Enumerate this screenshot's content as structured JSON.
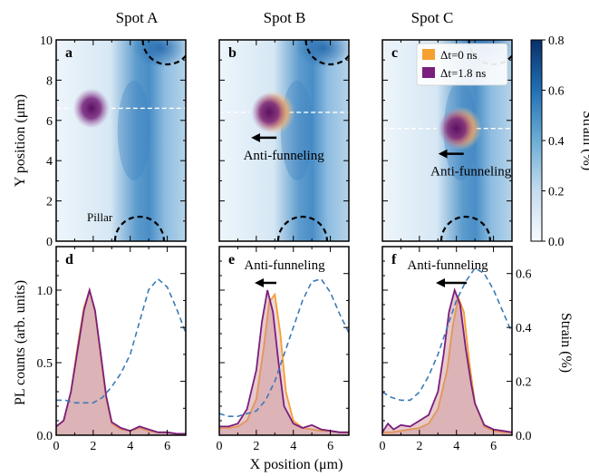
{
  "figure": {
    "column_titles": [
      "Spot A",
      "Spot B",
      "Spot C"
    ],
    "panel_letters": [
      "a",
      "b",
      "c",
      "d",
      "e",
      "f"
    ],
    "top_ylabel": "Y position (μm)",
    "bottom_ylabel": "PL counts (arb. units)",
    "xlabel": "X position (μm)",
    "colorbar_label": "Strain (%)",
    "right_ylabel": "Strain (%)",
    "pillar_label": "Pillar",
    "anti_funneling_label": "Anti-funneling",
    "legend": [
      {
        "label": "Δt=0 ns",
        "color": "#f5a030"
      },
      {
        "label": "Δt=1.8 ns",
        "color": "#7a1e7e"
      }
    ],
    "colormap": "Blues"
  },
  "chart_data": [
    {
      "type": "heatmap",
      "panel": "a",
      "title": "Spot A",
      "xlim": [
        0,
        7
      ],
      "ylim": [
        0,
        10
      ],
      "xticks": [
        0,
        2,
        4,
        6
      ],
      "yticks": [
        0,
        2,
        4,
        6,
        8,
        10
      ],
      "ylabel": "Y position (μm)",
      "colorbar_range": [
        0,
        0.8
      ],
      "exciton_spot": {
        "x": 1.9,
        "y": 6.6
      },
      "cut_line_y": 6.6,
      "pillars": [
        {
          "x": 4.5,
          "y": 0
        },
        {
          "x": 6.0,
          "y": 10
        }
      ]
    },
    {
      "type": "heatmap",
      "panel": "b",
      "title": "Spot B",
      "xlim": [
        0,
        7
      ],
      "ylim": [
        0,
        10
      ],
      "xticks": [
        0,
        2,
        4,
        6
      ],
      "yticks": [
        0,
        2,
        4,
        6,
        8,
        10
      ],
      "exciton_spot": {
        "x": 2.7,
        "y": 6.4
      },
      "cut_line_y": 6.4,
      "annotation": "Anti-funneling",
      "pillars": [
        {
          "x": 4.5,
          "y": 0
        },
        {
          "x": 6.0,
          "y": 10
        }
      ]
    },
    {
      "type": "heatmap",
      "panel": "c",
      "title": "Spot C",
      "xlim": [
        0,
        7
      ],
      "ylim": [
        0,
        10
      ],
      "xticks": [
        0,
        2,
        4,
        6
      ],
      "yticks": [
        0,
        2,
        4,
        6,
        8,
        10
      ],
      "colorbar_range": [
        0,
        0.8
      ],
      "colorbar_ticks": [
        0.0,
        0.2,
        0.4,
        0.6,
        0.8
      ],
      "exciton_spot": {
        "x": 4.0,
        "y": 5.6
      },
      "cut_line_y": 5.6,
      "annotation": "Anti-funneling",
      "pillars": [
        {
          "x": 4.5,
          "y": 0
        },
        {
          "x": 6.0,
          "y": 10
        }
      ]
    },
    {
      "type": "line",
      "panel": "d",
      "xlim": [
        0,
        7
      ],
      "ylim": [
        0,
        1.3
      ],
      "xticks": [
        0,
        2,
        4,
        6
      ],
      "yticks": [
        0.0,
        0.5,
        1.0
      ],
      "ylabel": "PL counts (arb. units)",
      "right_ylim": [
        0,
        0.7
      ],
      "series": [
        {
          "name": "Δt=0 ns",
          "x": [
            0,
            0.4,
            0.8,
            1.2,
            1.5,
            1.8,
            2.1,
            2.4,
            2.7,
            3.0,
            3.5,
            4.0,
            4.5,
            5.0,
            5.5,
            6.0,
            6.5,
            7.0
          ],
          "values": [
            0.06,
            0.1,
            0.3,
            0.65,
            0.88,
            1.0,
            0.85,
            0.55,
            0.25,
            0.08,
            0.04,
            0.03,
            0.05,
            0.03,
            0.02,
            0.02,
            0.01,
            0.01
          ]
        },
        {
          "name": "Δt=1.8 ns",
          "x": [
            0,
            0.4,
            0.8,
            1.2,
            1.5,
            1.8,
            2.1,
            2.4,
            2.7,
            3.0,
            3.5,
            4.0,
            4.5,
            5.0,
            5.5,
            6.0,
            6.5,
            7.0
          ],
          "values": [
            0.06,
            0.1,
            0.3,
            0.62,
            0.86,
            1.0,
            0.86,
            0.57,
            0.27,
            0.09,
            0.05,
            0.03,
            0.06,
            0.04,
            0.02,
            0.02,
            0.01,
            0.01
          ]
        },
        {
          "name": "Strain",
          "axis": "right",
          "x": [
            0,
            0.5,
            1.0,
            1.5,
            2.0,
            2.5,
            3.0,
            3.5,
            4.0,
            4.5,
            5.0,
            5.5,
            6.0,
            6.5,
            7.0
          ],
          "values": [
            0.13,
            0.13,
            0.12,
            0.12,
            0.12,
            0.14,
            0.18,
            0.23,
            0.3,
            0.42,
            0.54,
            0.58,
            0.55,
            0.47,
            0.38
          ]
        }
      ]
    },
    {
      "type": "line",
      "panel": "e",
      "xlim": [
        0,
        7
      ],
      "ylim": [
        0,
        1.3
      ],
      "xticks": [
        0,
        2,
        4,
        6
      ],
      "annotation": "Anti-funneling",
      "right_ylim": [
        0,
        0.7
      ],
      "series": [
        {
          "name": "Δt=0 ns",
          "x": [
            0,
            0.5,
            1.0,
            1.5,
            2.0,
            2.4,
            2.7,
            3.0,
            3.3,
            3.6,
            4.0,
            4.5,
            5.0,
            5.5,
            6.0,
            6.5,
            7.0
          ],
          "values": [
            0.05,
            0.05,
            0.06,
            0.1,
            0.25,
            0.6,
            0.92,
            0.97,
            0.7,
            0.3,
            0.1,
            0.05,
            0.04,
            0.03,
            0.03,
            0.02,
            0.02
          ]
        },
        {
          "name": "Δt=1.8 ns",
          "x": [
            0,
            0.5,
            1.0,
            1.5,
            2.0,
            2.3,
            2.6,
            2.9,
            3.2,
            3.5,
            4.0,
            4.5,
            5.0,
            5.5,
            6.0,
            6.5,
            7.0
          ],
          "values": [
            0.06,
            0.06,
            0.08,
            0.18,
            0.45,
            0.78,
            1.0,
            0.85,
            0.5,
            0.2,
            0.08,
            0.05,
            0.07,
            0.04,
            0.03,
            0.02,
            0.02
          ]
        },
        {
          "name": "Strain",
          "axis": "right",
          "x": [
            0,
            0.5,
            1.0,
            1.5,
            2.0,
            2.5,
            3.0,
            3.5,
            4.0,
            4.5,
            5.0,
            5.5,
            6.0,
            6.5,
            7.0
          ],
          "values": [
            0.08,
            0.07,
            0.07,
            0.08,
            0.09,
            0.13,
            0.2,
            0.3,
            0.4,
            0.5,
            0.57,
            0.58,
            0.53,
            0.45,
            0.38
          ]
        }
      ]
    },
    {
      "type": "line",
      "panel": "f",
      "xlim": [
        0,
        7
      ],
      "ylim": [
        0,
        1.3
      ],
      "xticks": [
        0,
        2,
        4,
        6
      ],
      "annotation": "Anti-funneling",
      "right_ylim": [
        0,
        0.7
      ],
      "right_yticks": [
        0.0,
        0.2,
        0.4,
        0.6
      ],
      "right_ylabel": "Strain (%)",
      "series": [
        {
          "name": "Δt=0 ns",
          "x": [
            0,
            0.5,
            1.0,
            2.0,
            2.5,
            3.0,
            3.5,
            3.8,
            4.1,
            4.4,
            4.7,
            5.0,
            5.5,
            6.0,
            6.5,
            7.0
          ],
          "values": [
            0.02,
            0.02,
            0.03,
            0.05,
            0.08,
            0.18,
            0.45,
            0.75,
            0.95,
            0.85,
            0.5,
            0.22,
            0.06,
            0.03,
            0.02,
            0.02
          ]
        },
        {
          "name": "Δt=1.8 ns",
          "x": [
            0,
            0.3,
            0.6,
            1.0,
            1.5,
            2.0,
            2.5,
            3.0,
            3.3,
            3.6,
            3.9,
            4.2,
            4.5,
            4.8,
            5.0,
            5.5,
            6.0,
            6.5,
            7.0
          ],
          "values": [
            0.02,
            0.08,
            0.04,
            0.07,
            0.06,
            0.1,
            0.14,
            0.3,
            0.55,
            0.85,
            1.0,
            0.9,
            0.6,
            0.35,
            0.22,
            0.07,
            0.04,
            0.03,
            0.02
          ]
        },
        {
          "name": "Strain",
          "axis": "right",
          "x": [
            0,
            0.5,
            1.0,
            1.5,
            2.0,
            2.5,
            3.0,
            3.5,
            4.0,
            4.5,
            5.0,
            5.5,
            6.0,
            6.5,
            7.0
          ],
          "values": [
            0.16,
            0.14,
            0.13,
            0.13,
            0.16,
            0.22,
            0.3,
            0.4,
            0.5,
            0.57,
            0.62,
            0.6,
            0.54,
            0.46,
            0.38
          ]
        }
      ]
    }
  ]
}
